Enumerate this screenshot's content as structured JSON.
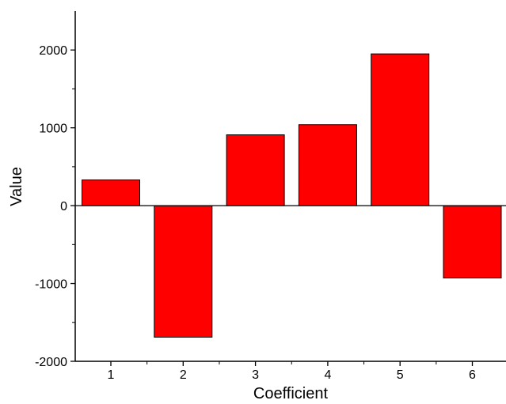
{
  "chart_data": {
    "type": "bar",
    "categories": [
      "1",
      "2",
      "3",
      "4",
      "5",
      "6"
    ],
    "values": [
      330,
      -1690,
      910,
      1040,
      1950,
      -930
    ],
    "xlabel": "Coefficient",
    "ylabel": "Value",
    "ylim": [
      -2000,
      2500
    ],
    "yticks": [
      -2000,
      -1000,
      0,
      1000,
      2000
    ],
    "ytick_labels": [
      "-2000",
      "-1000",
      "0",
      "1000",
      "2000"
    ],
    "grid": false,
    "legend": "none",
    "bar_color": "#ff0000",
    "edge_color": "#000000"
  }
}
